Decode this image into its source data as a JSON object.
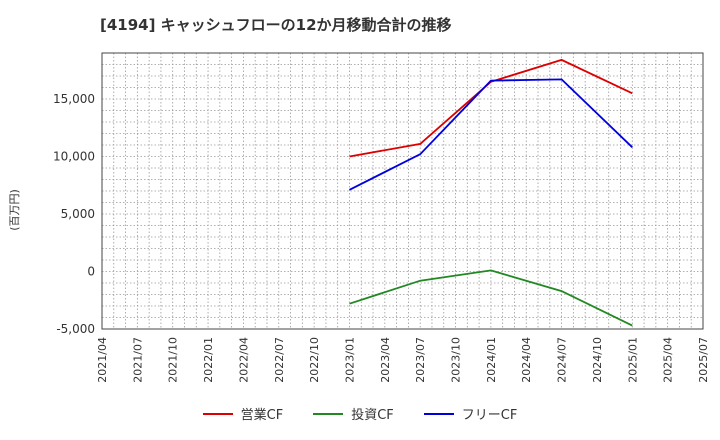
{
  "chart_data": {
    "type": "line",
    "title": "[4194]  キャッシュフローの12か月移動合計の推移",
    "ylabel": "(百万円)",
    "xlabel": "",
    "ylim": [
      -5000,
      19000
    ],
    "yticks": [
      -5000,
      0,
      5000,
      10000,
      15000
    ],
    "ytick_labels": [
      "-5,000",
      "0",
      "5,000",
      "10,000",
      "15,000"
    ],
    "x_tick_labels": [
      "2021/04",
      "2021/07",
      "2021/10",
      "2022/01",
      "2022/04",
      "2022/07",
      "2022/10",
      "2023/01",
      "2023/04",
      "2023/07",
      "2023/10",
      "2024/01",
      "2024/04",
      "2024/07",
      "2024/10",
      "2025/01",
      "2025/04",
      "2025/07"
    ],
    "grid": true,
    "legend_position": "bottom",
    "series": [
      {
        "name": "営業CF",
        "color": "#dd0000",
        "x": [
          "2023/01",
          "2023/07",
          "2024/01",
          "2024/07",
          "2025/01"
        ],
        "values": [
          10000,
          11100,
          16500,
          18400,
          15500
        ]
      },
      {
        "name": "投資CF",
        "color": "#228822",
        "x": [
          "2023/01",
          "2023/07",
          "2024/01",
          "2024/07",
          "2025/01"
        ],
        "values": [
          -2800,
          -800,
          100,
          -1700,
          -4700
        ]
      },
      {
        "name": "フリーCF",
        "color": "#0000dd",
        "x": [
          "2023/01",
          "2023/07",
          "2024/01",
          "2024/07",
          "2025/01"
        ],
        "values": [
          7100,
          10200,
          16600,
          16700,
          10800
        ]
      }
    ]
  }
}
